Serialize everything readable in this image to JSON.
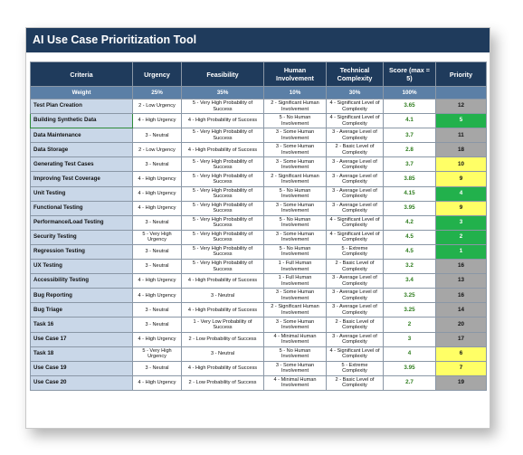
{
  "title": "AI Use Case Prioritization Tool",
  "columns": {
    "criteria": "Criteria",
    "urgency": "Urgency",
    "feasibility": "Feasibility",
    "human": "Human Involvement",
    "technical": "Technical Complexity",
    "score": "Score (max = 5)",
    "priority": "Priority"
  },
  "weights": {
    "label": "Weight",
    "urgency": "25%",
    "feasibility": "35%",
    "human": "10%",
    "technical": "30%",
    "score": "100%",
    "priority": ""
  },
  "colors": {
    "header_bg": "#1f3b5c",
    "weight_bg": "#5b7fa6",
    "criteria_bg": "#c9d7e8",
    "score_text": "#2f7d1f",
    "priority_green": "#22b14c",
    "priority_yellow": "#ffff66",
    "priority_gray": "#a6a6a6"
  },
  "rows": [
    {
      "criteria": "Test Plan Creation",
      "urgency": "2 - Low Urgency",
      "feasibility": "5 - Very High Probability of Success",
      "human": "2 - Significant Human Involvement",
      "technical": "4 - Significant Level of Complexity",
      "score": "3.65",
      "priority": "12",
      "level": "gray"
    },
    {
      "criteria": "Building Synthetic Data",
      "urgency": "4 - High Urgency",
      "feasibility": "4 - High Probability of Success",
      "human": "5 - No Human Involvement",
      "technical": "4 - Significant Level of Complexity",
      "score": "4.1",
      "priority": "5",
      "level": "green"
    },
    {
      "criteria": "Data Maintenance",
      "urgency": "3 - Neutral",
      "feasibility": "5 - Very High Probability of Success",
      "human": "3 - Some Human Involvement",
      "technical": "3 - Average Level of Complexity",
      "score": "3.7",
      "priority": "11",
      "level": "gray"
    },
    {
      "criteria": "Data Storage",
      "urgency": "2 - Low Urgency",
      "feasibility": "4 - High Probability of Success",
      "human": "3 - Some Human Involvement",
      "technical": "2 - Basic Level of Complexity",
      "score": "2.8",
      "priority": "18",
      "level": "gray"
    },
    {
      "criteria": "Generating Test Cases",
      "urgency": "3 - Neutral",
      "feasibility": "5 - Very High Probability of Success",
      "human": "3 - Some Human Involvement",
      "technical": "3 - Average Level of Complexity",
      "score": "3.7",
      "priority": "10",
      "level": "yellow"
    },
    {
      "criteria": "Improving Test Coverage",
      "urgency": "4 - High Urgency",
      "feasibility": "5 - Very High Probability of Success",
      "human": "2 - Significant Human Involvement",
      "technical": "3 - Average Level of Complexity",
      "score": "3.85",
      "priority": "9",
      "level": "yellow"
    },
    {
      "criteria": "Unit Testing",
      "urgency": "4 - High Urgency",
      "feasibility": "5 - Very High Probability of Success",
      "human": "5 - No Human Involvement",
      "technical": "3 - Average Level of Complexity",
      "score": "4.15",
      "priority": "4",
      "level": "green"
    },
    {
      "criteria": "Functional Testing",
      "urgency": "4 - High Urgency",
      "feasibility": "5 - Very High Probability of Success",
      "human": "3 - Some Human Involvement",
      "technical": "3 - Average Level of Complexity",
      "score": "3.95",
      "priority": "9",
      "level": "yellow"
    },
    {
      "criteria": "Performance/Load Testing",
      "urgency": "3 - Neutral",
      "feasibility": "5 - Very High Probability of Success",
      "human": "5 - No Human Involvement",
      "technical": "4 - Significant Level of Complexity",
      "score": "4.2",
      "priority": "3",
      "level": "green"
    },
    {
      "criteria": "Security Testing",
      "urgency": "5 - Very High Urgency",
      "feasibility": "5 - Very High Probability of Success",
      "human": "3 - Some Human Involvement",
      "technical": "4 - Significant Level of Complexity",
      "score": "4.5",
      "priority": "2",
      "level": "green"
    },
    {
      "criteria": "Regression Testing",
      "urgency": "3 - Neutral",
      "feasibility": "5 - Very High Probability of Success",
      "human": "5 - No Human Involvement",
      "technical": "5 - Extreme Complexity",
      "score": "4.5",
      "priority": "1",
      "level": "green"
    },
    {
      "criteria": "UX Testing",
      "urgency": "3 - Neutral",
      "feasibility": "5 - Very High Probability of Success",
      "human": "1 - Full Human Involvement",
      "technical": "2 - Basic Level of Complexity",
      "score": "3.2",
      "priority": "16",
      "level": "gray"
    },
    {
      "criteria": "Accessibility Testing",
      "urgency": "4 - High Urgency",
      "feasibility": "4 - High Probability of Success",
      "human": "1 - Full Human Involvement",
      "technical": "3 - Average Level of Complexity",
      "score": "3.4",
      "priority": "13",
      "level": "gray"
    },
    {
      "criteria": "Bug Reporting",
      "urgency": "4 - High Urgency",
      "feasibility": "3 - Neutral",
      "human": "3 - Some Human Involvement",
      "technical": "3 - Average Level of Complexity",
      "score": "3.25",
      "priority": "16",
      "level": "gray"
    },
    {
      "criteria": "Bug Triage",
      "urgency": "3 - Neutral",
      "feasibility": "4 - High Probability of Success",
      "human": "2 - Significant Human Involvement",
      "technical": "3 - Average Level of Complexity",
      "score": "3.25",
      "priority": "14",
      "level": "gray"
    },
    {
      "criteria": "Task 16",
      "urgency": "3 - Neutral",
      "feasibility": "1 - Very Low Probability of Success",
      "human": "3 - Some Human Involvement",
      "technical": "2 - Basic Level of Complexity",
      "score": "2",
      "priority": "20",
      "level": "gray"
    },
    {
      "criteria": "Use Case 17",
      "urgency": "4 - High Urgency",
      "feasibility": "2 - Low Probability of Success",
      "human": "4 - Minimal Human Involvement",
      "technical": "3 - Average Level of Complexity",
      "score": "3",
      "priority": "17",
      "level": "gray"
    },
    {
      "criteria": "Task 18",
      "urgency": "5 - Very High Urgency",
      "feasibility": "3 - Neutral",
      "human": "5 - No Human Involvement",
      "technical": "4 - Significant Level of Complexity",
      "score": "4",
      "priority": "6",
      "level": "yellow"
    },
    {
      "criteria": "Use Case 19",
      "urgency": "3 - Neutral",
      "feasibility": "4 - High Probability of Success",
      "human": "3 - Some Human Involvement",
      "technical": "5 - Extreme Complexity",
      "score": "3.95",
      "priority": "7",
      "level": "yellow"
    },
    {
      "criteria": "Use Case 20",
      "urgency": "4 - High Urgency",
      "feasibility": "2 - Low Probability of Success",
      "human": "4 - Minimal Human Involvement",
      "technical": "2 - Basic Level of Complexity",
      "score": "2.7",
      "priority": "19",
      "level": "gray"
    }
  ]
}
